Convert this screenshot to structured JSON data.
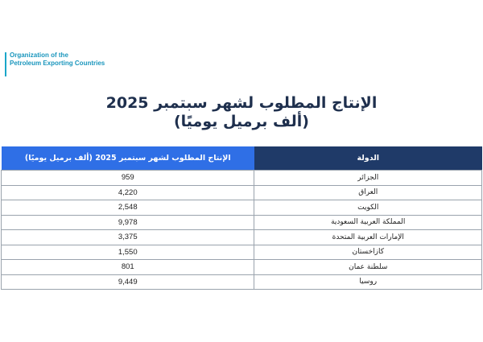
{
  "logo": {
    "line1": "Organization of the",
    "line2": "Petroleum Exporting Countries"
  },
  "title": {
    "line1": "الإنتاج المطلوب لشهر سبتمبر 2025",
    "line2": "(ألف برميل يوميًا)"
  },
  "table": {
    "headers": {
      "country": "الدولة",
      "value": "الإنتاج المطلوب لشهر سبتمبر 2025 (ألف برميل يوميًا)"
    },
    "rows": [
      {
        "country": "الجزائر",
        "value": "959"
      },
      {
        "country": "العراق",
        "value": "4,220"
      },
      {
        "country": "الكويت",
        "value": "2,548"
      },
      {
        "country": "المملكة العربية السعودية",
        "value": "9,978"
      },
      {
        "country": "الإمارات العربية المتحدة",
        "value": "3,375"
      },
      {
        "country": "كازاخستان",
        "value": "1,550"
      },
      {
        "country": "سلطنة عمان",
        "value": "801"
      },
      {
        "country": "روسيا",
        "value": "9,449"
      }
    ]
  },
  "colors": {
    "header_country_bg": "#1f3a68",
    "header_value_bg": "#2f6fe6",
    "logo": "#1a96bd",
    "title": "#1e2f4d"
  }
}
